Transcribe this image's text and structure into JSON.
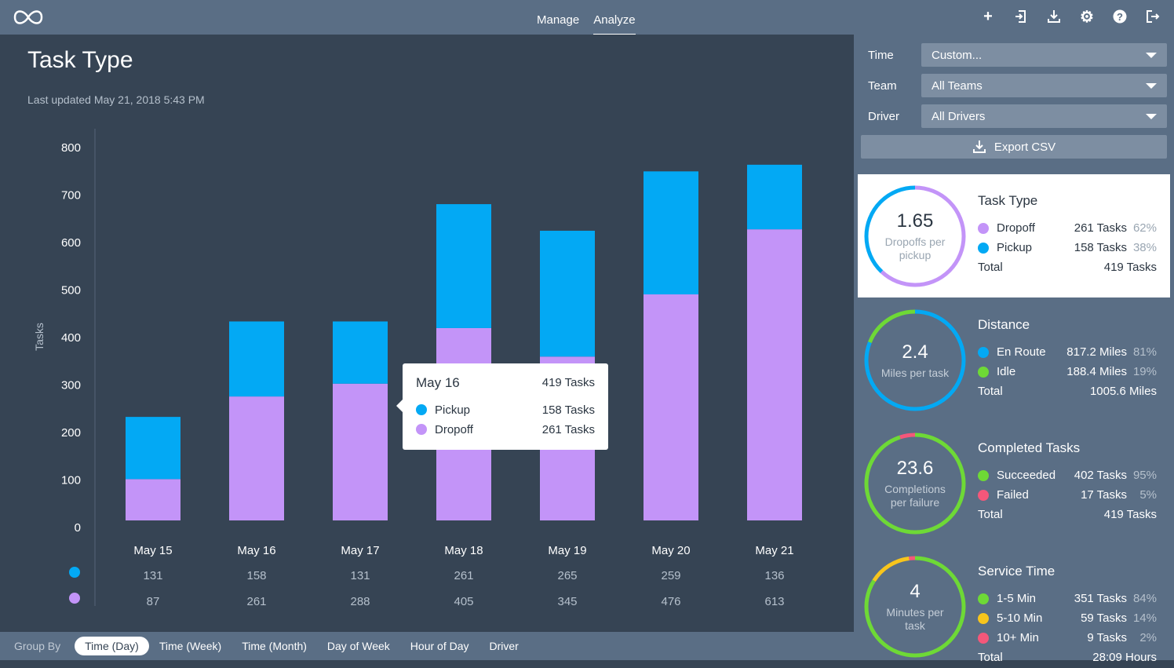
{
  "topbar": {
    "nav": [
      "Manage",
      "Analyze"
    ],
    "active": "Analyze",
    "icons": [
      "plus-icon",
      "import-icon",
      "download-icon",
      "gear-icon",
      "help-icon",
      "logout-icon"
    ]
  },
  "main": {
    "title": "Task Type",
    "updated": "Last updated May 21, 2018 5:43 PM"
  },
  "chart_data": {
    "type": "bar",
    "stacked": true,
    "ylabel": "Tasks",
    "ylim": [
      0,
      800
    ],
    "yticks": [
      0,
      100,
      200,
      300,
      400,
      500,
      600,
      700,
      800
    ],
    "categories": [
      "May 15",
      "May 16",
      "May 17",
      "May 18",
      "May 19",
      "May 20",
      "May 21"
    ],
    "series": [
      {
        "name": "Dropoff",
        "color": "#c394f8",
        "values": [
          87,
          261,
          288,
          405,
          345,
          476,
          613
        ]
      },
      {
        "name": "Pickup",
        "color": "#03a9f4",
        "values": [
          131,
          158,
          131,
          261,
          265,
          259,
          136
        ]
      }
    ]
  },
  "tooltip": {
    "date": "May 16",
    "total": "419 Tasks",
    "rows": [
      {
        "name": "Pickup",
        "value": "158 Tasks",
        "color": "#03a9f4"
      },
      {
        "name": "Dropoff",
        "value": "261 Tasks",
        "color": "#c394f8"
      }
    ]
  },
  "groupby": {
    "label": "Group By",
    "options": [
      "Time (Day)",
      "Time (Week)",
      "Time (Month)",
      "Day of Week",
      "Hour of Day",
      "Driver"
    ],
    "selected": "Time (Day)"
  },
  "filters": [
    {
      "label": "Time",
      "value": "Custom..."
    },
    {
      "label": "Team",
      "value": "All Teams"
    },
    {
      "label": "Driver",
      "value": "All Drivers"
    }
  ],
  "export_label": "Export CSV",
  "cards": [
    {
      "title": "Task Type",
      "big": "1.65",
      "sub": "Dropoffs per pickup",
      "rows": [
        {
          "name": "Dropoff",
          "value": "261 Tasks",
          "pct": "62%",
          "color": "#c394f8",
          "frac": 0.62
        },
        {
          "name": "Pickup",
          "value": "158 Tasks",
          "pct": "38%",
          "color": "#03a9f4",
          "frac": 0.38
        }
      ],
      "total": "419 Tasks",
      "total_label": "Total"
    },
    {
      "title": "Distance",
      "big": "2.4",
      "sub": "Miles per task",
      "rows": [
        {
          "name": "En Route",
          "value": "817.2 Miles",
          "pct": "81%",
          "color": "#03a9f4",
          "frac": 0.81
        },
        {
          "name": "Idle",
          "value": "188.4 Miles",
          "pct": "19%",
          "color": "#6ed936",
          "frac": 0.19
        }
      ],
      "total": "1005.6 Miles",
      "total_label": "Total"
    },
    {
      "title": "Completed Tasks",
      "big": "23.6",
      "sub": "Completions per failure",
      "rows": [
        {
          "name": "Succeeded",
          "value": "402 Tasks",
          "pct": "95%",
          "color": "#6ed936",
          "frac": 0.95
        },
        {
          "name": "Failed",
          "value": "17 Tasks",
          "pct": "5%",
          "color": "#f4577a",
          "frac": 0.05
        }
      ],
      "total": "419 Tasks",
      "total_label": "Total"
    },
    {
      "title": "Service Time",
      "big": "4",
      "sub": "Minutes per task",
      "rows": [
        {
          "name": "1-5 Min",
          "value": "351 Tasks",
          "pct": "84%",
          "color": "#6ed936",
          "frac": 0.84
        },
        {
          "name": "5-10 Min",
          "value": "59 Tasks",
          "pct": "14%",
          "color": "#f8c51c",
          "frac": 0.14
        },
        {
          "name": "10+ Min",
          "value": "9 Tasks",
          "pct": "2%",
          "color": "#f4577a",
          "frac": 0.02
        }
      ],
      "total": "28:09 Hours",
      "total_label": "Total"
    }
  ]
}
